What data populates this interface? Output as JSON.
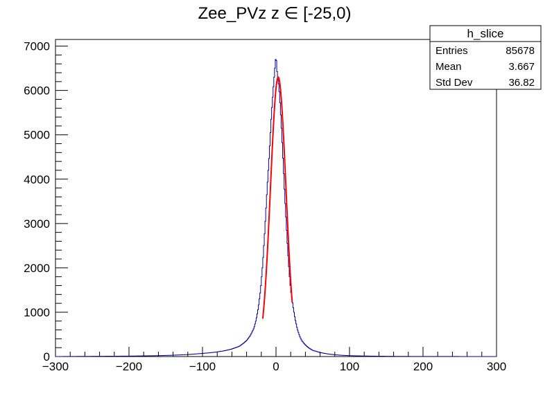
{
  "chart_data": {
    "type": "bar",
    "title": "Zee_PVz z  ∈ [-25,0)",
    "xlabel": "",
    "ylabel": "",
    "xlim": [
      -300,
      300
    ],
    "ylim": [
      0,
      7150
    ],
    "x_ticks": [
      -300,
      -200,
      -100,
      0,
      100,
      200,
      300
    ],
    "x_tick_labels": [
      "−300",
      "−200",
      "−100",
      "0",
      "100",
      "200",
      "300"
    ],
    "y_ticks": [
      0,
      1000,
      2000,
      3000,
      4000,
      5000,
      6000,
      7000
    ],
    "y_tick_labels": [
      "0",
      "1000",
      "2000",
      "3000",
      "4000",
      "5000",
      "6000",
      "7000"
    ],
    "grid": false,
    "histogram": {
      "bin_centers": [
        -200,
        -180,
        -160,
        -140,
        -120,
        -100,
        -90,
        -80,
        -70,
        -60,
        -50,
        -45,
        -40,
        -35,
        -30,
        -27,
        -24,
        -21,
        -18,
        -15,
        -12,
        -9,
        -6,
        -3,
        0,
        2,
        4,
        6,
        8,
        10,
        12,
        14,
        16,
        18,
        20,
        23,
        26,
        29,
        32,
        35,
        40,
        45,
        50,
        60,
        70,
        80,
        90,
        100,
        120,
        140,
        160,
        180,
        200
      ],
      "counts": [
        10,
        15,
        20,
        30,
        45,
        70,
        85,
        105,
        130,
        170,
        230,
        290,
        360,
        470,
        640,
        830,
        1100,
        1500,
        2100,
        2900,
        3800,
        4600,
        5500,
        6200,
        6800,
        6300,
        6100,
        5600,
        5000,
        4300,
        3600,
        3000,
        2400,
        1900,
        1500,
        1150,
        850,
        620,
        470,
        360,
        260,
        190,
        140,
        90,
        60,
        40,
        28,
        20,
        12,
        8,
        5,
        3,
        2
      ]
    },
    "fit": {
      "name": "gaus",
      "color": "#ff0000",
      "mean": 3.0,
      "sigma": 10.5,
      "amplitude": 6300,
      "range": [
        -18,
        22
      ]
    },
    "series_colors": {
      "histogram": "#000099",
      "fit": "#ff0000"
    },
    "stats_box": {
      "title": "h_slice",
      "rows": [
        {
          "label": "Entries",
          "value": "85678"
        },
        {
          "label": "Mean",
          "value": "3.667"
        },
        {
          "label": "Std Dev",
          "value": "36.82"
        }
      ]
    }
  }
}
